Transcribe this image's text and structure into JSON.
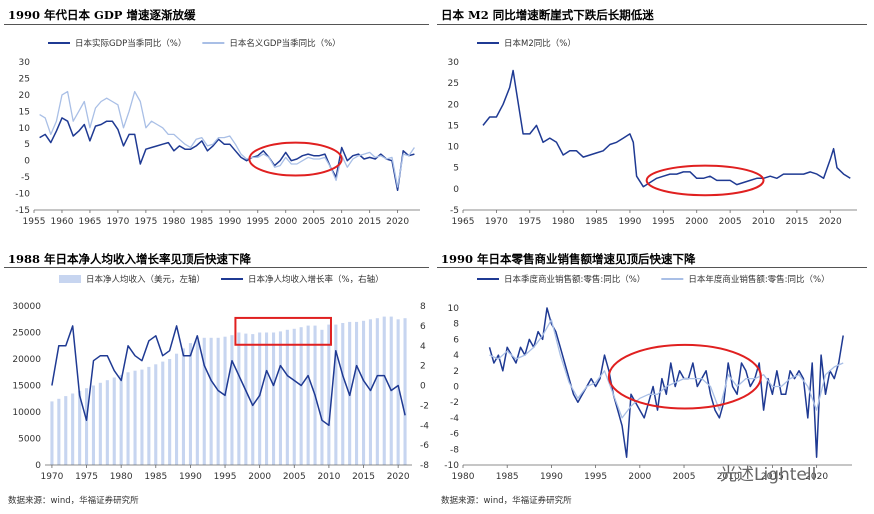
{
  "watermark": "光述Lightell",
  "source_left": "数据来源：wind，华福证券研究所",
  "source_right": "数据来源：wind，华福证券研究所",
  "colors": {
    "dark": "#1f3a93",
    "light": "#a9bfe6",
    "bar": "#c7d5f0",
    "red": "#e02020",
    "axis": "#666666",
    "rule": "#555555"
  },
  "chart_data": [
    {
      "type": "line",
      "title": "1990 年代日本 GDP 增速逐渐放缓",
      "xlabel": "",
      "ylabel": "",
      "xlim": [
        1955,
        2024
      ],
      "ylim": [
        -15,
        30
      ],
      "x_ticks": [
        1955,
        1960,
        1965,
        1970,
        1975,
        1980,
        1985,
        1990,
        1995,
        2000,
        2005,
        2010,
        2015,
        2020
      ],
      "y_ticks": [
        -15,
        -10,
        -5,
        0,
        5,
        10,
        15,
        20,
        25,
        30
      ],
      "grid": false,
      "legend": "top-left",
      "annotation": {
        "shape": "ellipse",
        "x": [
          1993.5,
          2010
        ],
        "y": [
          -4.5,
          5.5
        ]
      },
      "series": [
        {
          "name": "日本实际GDP当季同比（%）",
          "color": "dark",
          "x": [
            1956,
            1957,
            1958,
            1959,
            1960,
            1961,
            1962,
            1963,
            1964,
            1965,
            1966,
            1967,
            1968,
            1969,
            1970,
            1971,
            1972,
            1973,
            1974,
            1975,
            1976,
            1977,
            1978,
            1979,
            1980,
            1981,
            1982,
            1983,
            1984,
            1985,
            1986,
            1987,
            1988,
            1989,
            1990,
            1991,
            1992,
            1993,
            1994,
            1995,
            1996,
            1997,
            1998,
            1999,
            2000,
            2001,
            2002,
            2003,
            2004,
            2005,
            2006,
            2007,
            2008,
            2009,
            2010,
            2011,
            2012,
            2013,
            2014,
            2015,
            2016,
            2017,
            2018,
            2019,
            2020,
            2021,
            2022,
            2023
          ],
          "y": [
            7,
            8,
            5.5,
            9,
            13,
            12,
            7.5,
            9,
            11,
            6,
            10.5,
            11,
            12,
            12,
            9.5,
            4.5,
            8,
            8,
            -1,
            3.5,
            4,
            4.5,
            5,
            5.5,
            3,
            4.5,
            3.5,
            3.5,
            4.5,
            6,
            3,
            4.5,
            6.5,
            5,
            5,
            3,
            1,
            0,
            1,
            1.5,
            3,
            1,
            -1.5,
            0,
            2.5,
            0,
            0.5,
            1.5,
            2,
            1.5,
            1.5,
            2,
            -2,
            -5,
            4,
            0,
            1.5,
            2,
            0.5,
            1,
            0.5,
            2,
            0.5,
            0,
            -9,
            3,
            1.5,
            2
          ]
        },
        {
          "name": "日本名义GDP当季同比（%）",
          "color": "light",
          "x": [
            1956,
            1957,
            1958,
            1959,
            1960,
            1961,
            1962,
            1963,
            1964,
            1965,
            1966,
            1967,
            1968,
            1969,
            1970,
            1971,
            1972,
            1973,
            1974,
            1975,
            1976,
            1977,
            1978,
            1979,
            1980,
            1981,
            1982,
            1983,
            1984,
            1985,
            1986,
            1987,
            1988,
            1989,
            1990,
            1991,
            1992,
            1993,
            1994,
            1995,
            1996,
            1997,
            1998,
            1999,
            2000,
            2001,
            2002,
            2003,
            2004,
            2005,
            2006,
            2007,
            2008,
            2009,
            2010,
            2011,
            2012,
            2013,
            2014,
            2015,
            2016,
            2017,
            2018,
            2019,
            2020,
            2021,
            2022,
            2023
          ],
          "y": [
            14,
            13,
            8,
            12,
            20,
            21,
            12,
            15,
            18,
            10,
            16,
            18,
            19,
            18,
            17,
            10,
            15,
            21,
            18,
            10,
            12,
            11,
            10,
            8,
            8,
            6.5,
            5,
            4,
            6.5,
            7,
            4.5,
            5,
            7,
            7,
            7.5,
            5,
            2,
            0.5,
            1,
            1,
            2,
            1,
            -2,
            -1.5,
            1,
            -1,
            -1,
            0,
            1,
            0.5,
            0.5,
            1,
            -2,
            -6,
            1.5,
            -2,
            0.5,
            1.5,
            2,
            2.5,
            1,
            1.5,
            0.5,
            1,
            -8,
            2,
            1.5,
            4
          ]
        }
      ]
    },
    {
      "type": "line",
      "title": "日本 M2 同比增速断崖式下跌后长期低迷",
      "xlabel": "",
      "ylabel": "",
      "xlim": [
        1965,
        2024
      ],
      "ylim": [
        -5,
        30
      ],
      "x_ticks": [
        1965,
        1970,
        1975,
        1980,
        1985,
        1990,
        1995,
        2000,
        2005,
        2010,
        2015,
        2020
      ],
      "y_ticks": [
        -5,
        0,
        5,
        10,
        15,
        20,
        25,
        30
      ],
      "grid": false,
      "legend": "top-left",
      "annotation": {
        "shape": "ellipse",
        "x": [
          1992.5,
          2010
        ],
        "y": [
          -1.5,
          5.5
        ]
      },
      "series": [
        {
          "name": "日本M2同比（%）",
          "color": "dark",
          "x": [
            1968,
            1969,
            1970,
            1971,
            1972,
            1972.5,
            1973,
            1974,
            1975,
            1976,
            1977,
            1978,
            1979,
            1980,
            1981,
            1982,
            1983,
            1984,
            1985,
            1986,
            1987,
            1988,
            1989,
            1990,
            1990.5,
            1991,
            1992,
            1993,
            1994,
            1995,
            1996,
            1997,
            1998,
            1999,
            2000,
            2001,
            2002,
            2003,
            2004,
            2005,
            2006,
            2007,
            2008,
            2009,
            2010,
            2011,
            2012,
            2013,
            2014,
            2015,
            2016,
            2017,
            2018,
            2019,
            2020,
            2020.5,
            2021,
            2022,
            2023
          ],
          "y": [
            15,
            17,
            17,
            20,
            24,
            28,
            23,
            13,
            13,
            15,
            11,
            12,
            11,
            8,
            9,
            9,
            7.5,
            8,
            8.5,
            9,
            10.5,
            11,
            12,
            13,
            11,
            3,
            0.5,
            1.5,
            2.5,
            3,
            3.5,
            3.5,
            4,
            4,
            2.5,
            2.5,
            3,
            2,
            2,
            2,
            1,
            1.5,
            2,
            2.5,
            2.5,
            3,
            2.5,
            3.5,
            3.5,
            3.5,
            3.5,
            4,
            3.5,
            2.5,
            7,
            9.5,
            5,
            3.5,
            2.5
          ]
        }
      ]
    },
    {
      "type": "bar",
      "title": "1988 年日本净人均收入增长率见顶后快速下降",
      "xlabel": "",
      "ylabel": "",
      "xlim": [
        1969,
        2022
      ],
      "ylim": [
        0,
        30000
      ],
      "y2lim": [
        -8,
        8
      ],
      "x_ticks": [
        1970,
        1975,
        1980,
        1985,
        1990,
        1995,
        2000,
        2005,
        2010,
        2015,
        2020
      ],
      "y_ticks": [
        0,
        5000,
        10000,
        15000,
        20000,
        25000,
        30000
      ],
      "y2_ticks": [
        -8,
        -6,
        -4,
        -2,
        0,
        2,
        4,
        6,
        8
      ],
      "grid": false,
      "legend": "top",
      "annotation": {
        "shape": "rect",
        "x": [
          1996.5,
          2010.3
        ],
        "y": [
          4.1,
          6.8
        ]
      },
      "series": [
        {
          "name": "日本净人均收入（美元，左轴）",
          "type": "bar",
          "color": "bar",
          "x": [
            1970,
            1971,
            1972,
            1973,
            1974,
            1975,
            1976,
            1977,
            1978,
            1979,
            1980,
            1981,
            1982,
            1983,
            1984,
            1985,
            1986,
            1987,
            1988,
            1989,
            1990,
            1991,
            1992,
            1993,
            1994,
            1995,
            1996,
            1997,
            1998,
            1999,
            2000,
            2001,
            2002,
            2003,
            2004,
            2005,
            2006,
            2007,
            2008,
            2009,
            2010,
            2011,
            2012,
            2013,
            2014,
            2015,
            2016,
            2017,
            2018,
            2019,
            2020,
            2021
          ],
          "values": [
            12000,
            12500,
            13000,
            13500,
            14000,
            14500,
            15000,
            15500,
            16000,
            16500,
            17000,
            17500,
            17800,
            18000,
            18500,
            19000,
            19500,
            20000,
            21000,
            22000,
            23000,
            23500,
            24000,
            24000,
            24000,
            24200,
            24500,
            25000,
            24800,
            24700,
            25000,
            25000,
            25000,
            25200,
            25500,
            25700,
            26000,
            26300,
            26300,
            25500,
            26500,
            26500,
            26800,
            27000,
            27000,
            27200,
            27500,
            27700,
            28000,
            28000,
            27500,
            27700
          ]
        },
        {
          "name": "日本净人均收入增长率（%，右轴）",
          "type": "line",
          "color": "dark",
          "x": [
            1970,
            1971,
            1972,
            1973,
            1974,
            1975,
            1976,
            1977,
            1978,
            1979,
            1980,
            1981,
            1982,
            1983,
            1984,
            1985,
            1986,
            1987,
            1988,
            1989,
            1990,
            1991,
            1992,
            1993,
            1994,
            1995,
            1996,
            1997,
            1998,
            1999,
            2000,
            2001,
            2002,
            2003,
            2004,
            2005,
            2006,
            2007,
            2008,
            2009,
            2010,
            2011,
            2012,
            2013,
            2014,
            2015,
            2016,
            2017,
            2018,
            2019,
            2020,
            2021
          ],
          "values": [
            0,
            4,
            4,
            6,
            -1,
            -3.5,
            2.5,
            3,
            3,
            1.5,
            0.5,
            4,
            3,
            2.5,
            4.5,
            5,
            3,
            3.5,
            6,
            3,
            3,
            5,
            2,
            0.5,
            -0.5,
            -1,
            2.5,
            1,
            -0.5,
            -2,
            -1,
            1.5,
            0,
            2,
            1,
            0.5,
            0,
            1,
            -1,
            -3.5,
            -4,
            3.5,
            1,
            -1,
            2,
            0.5,
            -0.5,
            1,
            1,
            -0.5,
            0,
            -3
          ]
        }
      ]
    },
    {
      "type": "line",
      "title": "1990 年日本零售商业销售额增速见顶后快速下降",
      "xlabel": "",
      "ylabel": "",
      "xlim": [
        1980,
        2024
      ],
      "ylim": [
        -10,
        10
      ],
      "x_ticks": [
        1980,
        1985,
        1990,
        1995,
        2000,
        2005,
        2010,
        2015,
        2020
      ],
      "y_ticks": [
        -10,
        -8,
        -6,
        -4,
        -2,
        0,
        2,
        4,
        6,
        8,
        10
      ],
      "grid": false,
      "legend": "top",
      "annotation": {
        "shape": "ellipse",
        "x": [
          1996.5,
          2013.7
        ],
        "y": [
          -2.8,
          5.3
        ]
      },
      "series": [
        {
          "name": "日本季度商业销售额:零售:同比（%）",
          "color": "dark",
          "x": [
            1983,
            1983.5,
            1984,
            1984.5,
            1985,
            1985.5,
            1986,
            1986.5,
            1987,
            1987.5,
            1988,
            1988.5,
            1989,
            1989.5,
            1990,
            1990.5,
            1991,
            1991.5,
            1992,
            1992.5,
            1993,
            1993.5,
            1994,
            1994.5,
            1995,
            1995.5,
            1996,
            1996.5,
            1997,
            1997.5,
            1998,
            1998.5,
            1999,
            1999.5,
            2000,
            2000.5,
            2001,
            2001.5,
            2002,
            2002.5,
            2003,
            2003.5,
            2004,
            2004.5,
            2005,
            2005.5,
            2006,
            2006.5,
            2007,
            2007.5,
            2008,
            2008.5,
            2009,
            2009.5,
            2010,
            2010.5,
            2011,
            2011.5,
            2012,
            2012.5,
            2013,
            2013.5,
            2014,
            2014.5,
            2015,
            2015.5,
            2016,
            2016.5,
            2017,
            2017.5,
            2018,
            2018.5,
            2019,
            2019.5,
            2020,
            2020.5,
            2021,
            2021.5,
            2022,
            2022.5,
            2023
          ],
          "y": [
            5,
            3,
            4,
            2,
            5,
            4,
            3,
            5,
            4,
            6,
            5,
            7,
            6,
            10,
            8,
            7,
            5,
            3,
            1,
            -1,
            -2,
            -1,
            0,
            1,
            0,
            1,
            4,
            2,
            -1,
            -3,
            -5,
            -9,
            -1,
            -2,
            -3,
            -4,
            -2,
            0,
            -3,
            1,
            -1,
            3,
            0,
            2,
            1,
            1,
            3,
            0,
            1,
            2,
            -1,
            -3,
            -4,
            -2,
            3,
            0,
            -1,
            3,
            2,
            0,
            1,
            3,
            -3,
            1,
            -1,
            2,
            -1,
            -1,
            2,
            1,
            2,
            1,
            -4,
            3,
            -9,
            4,
            -1,
            2,
            1,
            3,
            6.5
          ]
        },
        {
          "name": "日本年度商业销售额:零售:同比（%）",
          "color": "light",
          "x": [
            1983,
            1984,
            1985,
            1986,
            1987,
            1988,
            1989,
            1990,
            1991,
            1992,
            1993,
            1994,
            1995,
            1996,
            1997,
            1998,
            1999,
            2000,
            2001,
            2002,
            2003,
            2004,
            2005,
            2006,
            2007,
            2008,
            2009,
            2010,
            2011,
            2012,
            2013,
            2014,
            2015,
            2016,
            2017,
            2018,
            2019,
            2020,
            2021,
            2022,
            2023
          ],
          "y": [
            4,
            3.5,
            4.5,
            3.5,
            4,
            5,
            6.5,
            8.5,
            4,
            0.5,
            -1.5,
            0,
            0.5,
            2,
            -1,
            -4,
            -2.5,
            -1.5,
            -1,
            -1,
            0,
            0.5,
            1,
            1,
            1,
            0,
            -3,
            1.5,
            0,
            1,
            1,
            1.5,
            0,
            0,
            1,
            1.5,
            0,
            -3,
            1.5,
            2.5,
            3
          ]
        }
      ]
    }
  ]
}
